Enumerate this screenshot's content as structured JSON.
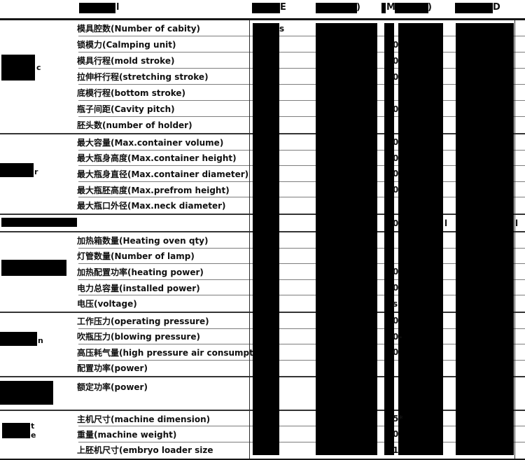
{
  "title_row": {
    "model_fragment": "l",
    "col_a_tail": "E",
    "col_b_tail": ")",
    "col_c_lead": "M",
    "col_c_tail": ")",
    "col_d_tail": "D"
  },
  "category_fragments": {
    "sec1": "c",
    "sec2": "r",
    "sec4": "n",
    "sec6_line1": "t",
    "sec6_line2": "e"
  },
  "sections": [
    {
      "name": "clamping-section",
      "rows": [
        {
          "label": "模具腔数(Number of cabity)",
          "frags": [
            {
              "t": "s",
              "slot": "a"
            }
          ]
        },
        {
          "label": "锁模力(Calmping unit)",
          "frags": [
            {
              "t": "0",
              "slot": "v"
            }
          ]
        },
        {
          "label": "模具行程(mold stroke)",
          "frags": [
            {
              "t": "0",
              "slot": "v"
            }
          ]
        },
        {
          "label": "拉伸杆行程(stretching stroke)",
          "frags": [
            {
              "t": "0",
              "slot": "v"
            }
          ]
        },
        {
          "label": "底模行程(bottom stroke)",
          "frags": []
        },
        {
          "label": "瓶子间距(Cavity pitch)",
          "frags": [
            {
              "t": "0",
              "slot": "v"
            }
          ]
        },
        {
          "label": "胚头数(number of holder)",
          "frags": []
        }
      ]
    },
    {
      "name": "container-section",
      "rows": [
        {
          "label": "最大容量(Max.container volume)",
          "frags": [
            {
              "t": "0",
              "slot": "v"
            }
          ]
        },
        {
          "label": "最大瓶身高度(Max.container height)",
          "frags": [
            {
              "t": "0",
              "slot": "v"
            }
          ]
        },
        {
          "label": "最大瓶身直径(Max.container diameter)",
          "frags": [
            {
              "t": "0",
              "slot": "v"
            }
          ]
        },
        {
          "label": "最大瓶胚高度(Max.prefrom height)",
          "frags": [
            {
              "t": "0",
              "slot": "v"
            }
          ]
        },
        {
          "label": "最大瓶口外径(Max.neck diameter)",
          "frags": []
        }
      ]
    },
    {
      "name": "redacted-row-section",
      "rows": [
        {
          "label": "",
          "frags": [
            {
              "t": "0",
              "slot": "v"
            },
            {
              "t": "l",
              "slot": "c4"
            },
            {
              "t": "l",
              "slot": "r"
            }
          ]
        }
      ]
    },
    {
      "name": "heating-section",
      "rows": [
        {
          "label": "加热箱数量(Heating oven qty)",
          "frags": []
        },
        {
          "label": "灯管数量(Number of lamp)",
          "frags": []
        },
        {
          "label": "加热配置功率(heating power)",
          "frags": [
            {
              "t": "0",
              "slot": "v"
            }
          ]
        },
        {
          "label": "电力总容量(installed power)",
          "frags": [
            {
              "t": "0",
              "slot": "v"
            }
          ]
        },
        {
          "label": "电压(voltage)",
          "frags": [
            {
              "t": "s",
              "slot": "v"
            }
          ]
        }
      ]
    },
    {
      "name": "air-system-section",
      "rows": [
        {
          "label": "工作压力(operating pressure)",
          "frags": [
            {
              "t": "0",
              "slot": "v"
            }
          ]
        },
        {
          "label": "吹瓶压力(blowing pressure)",
          "frags": [
            {
              "t": "0-",
              "slot": "v"
            }
          ]
        },
        {
          "label": "高压耗气量(high pressure air consumption)",
          "frags": [
            {
              "t": "0",
              "slot": "v"
            }
          ]
        },
        {
          "label": "配置功率(power)",
          "frags": []
        }
      ]
    },
    {
      "name": "rated-power-section",
      "rows": [
        {
          "label": "额定功率(power)",
          "frags": []
        }
      ]
    },
    {
      "name": "machine-size-section",
      "rows": [
        {
          "label": "主机尺寸(machine dimension)",
          "frags": [
            {
              "t": "5*",
              "slot": "v"
            }
          ]
        },
        {
          "label": "重量(machine weight)",
          "frags": [
            {
              "t": "0",
              "slot": "v"
            }
          ]
        },
        {
          "label": "上胚机尺寸(embryo loader size",
          "frags": [
            {
              "t": "1",
              "slot": "v"
            }
          ]
        }
      ]
    }
  ]
}
